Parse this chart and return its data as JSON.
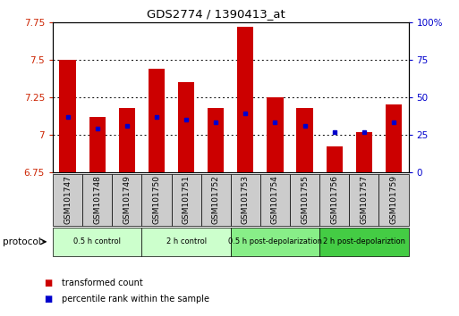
{
  "title": "GDS2774 / 1390413_at",
  "samples": [
    "GSM101747",
    "GSM101748",
    "GSM101749",
    "GSM101750",
    "GSM101751",
    "GSM101752",
    "GSM101753",
    "GSM101754",
    "GSM101755",
    "GSM101756",
    "GSM101757",
    "GSM101759"
  ],
  "bar_tops": [
    7.5,
    7.12,
    7.18,
    7.44,
    7.35,
    7.18,
    7.72,
    7.25,
    7.18,
    6.92,
    7.02,
    7.2
  ],
  "bar_bottoms": [
    6.75,
    6.75,
    6.75,
    6.75,
    6.75,
    6.75,
    6.75,
    6.75,
    6.75,
    6.75,
    6.75,
    6.75
  ],
  "percentile_values": [
    7.12,
    7.04,
    7.06,
    7.12,
    7.1,
    7.08,
    7.14,
    7.08,
    7.06,
    7.02,
    7.02,
    7.08
  ],
  "ylim": [
    6.75,
    7.75
  ],
  "yticks": [
    6.75,
    7.0,
    7.25,
    7.5,
    7.75
  ],
  "right_yticks_pct": [
    0,
    25,
    50,
    75,
    100
  ],
  "right_ytick_labels": [
    "0",
    "25",
    "50",
    "75",
    "100%"
  ],
  "bar_color": "#cc0000",
  "dot_color": "#0000cc",
  "tick_color_left": "#cc2200",
  "tick_color_right": "#0000cc",
  "protocol_groups": [
    {
      "label": "0.5 h control",
      "start": 0,
      "end": 3,
      "color": "#ccffcc"
    },
    {
      "label": "2 h control",
      "start": 3,
      "end": 6,
      "color": "#ccffcc"
    },
    {
      "label": "0.5 h post-depolarization",
      "start": 6,
      "end": 9,
      "color": "#88ee88"
    },
    {
      "label": "2 h post-depolariztion",
      "start": 9,
      "end": 12,
      "color": "#44cc44"
    }
  ],
  "legend_red_label": "transformed count",
  "legend_blue_label": "percentile rank within the sample",
  "protocol_label": "protocol",
  "sample_box_color": "#cccccc",
  "ytick_labels": [
    "6.75",
    "7",
    "7.25",
    "7.5",
    "7.75"
  ]
}
